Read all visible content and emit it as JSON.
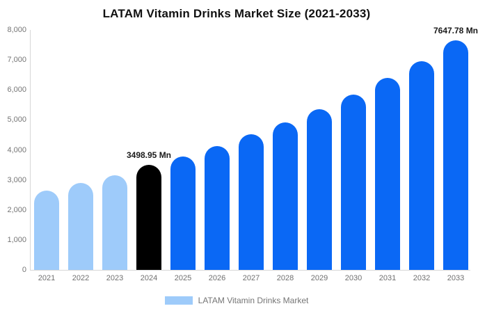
{
  "chart_data": {
    "type": "bar",
    "title": "LATAM Vitamin Drinks Market Size (2021-2033)",
    "xlabel": "",
    "ylabel": "",
    "categories": [
      "2021",
      "2022",
      "2023",
      "2024",
      "2025",
      "2026",
      "2027",
      "2028",
      "2029",
      "2030",
      "2031",
      "2032",
      "2033"
    ],
    "values": [
      2645,
      2900,
      3155,
      3498.95,
      3780,
      4130,
      4525,
      4920,
      5360,
      5845,
      6405,
      6960,
      7647.78
    ],
    "unit": "Mn",
    "ylim": [
      0,
      8000
    ],
    "ytick_interval": 1000,
    "ytick_labels": [
      "0",
      "1,000",
      "2,000",
      "3,000",
      "4,000",
      "5,000",
      "6,000",
      "7,000",
      "8,000"
    ],
    "grid": "off",
    "legend_position": "bottom",
    "annotations": [
      {
        "index": 3,
        "text": "3498.95 Mn"
      },
      {
        "index": 12,
        "text": "7647.78 Mn"
      }
    ],
    "point_colors": [
      "#9ECBFA",
      "#9ECBFA",
      "#9ECBFA",
      "#000000",
      "#0A68F5",
      "#0A68F5",
      "#0A68F5",
      "#0A68F5",
      "#0A68F5",
      "#0A68F5",
      "#0A68F5",
      "#0A68F5",
      "#0A68F5"
    ],
    "colors": {
      "historical": "#9ECBFA",
      "base_year": "#000000",
      "forecast": "#0A68F5",
      "axis_line": "#D6D6D6",
      "tick_text": "#757575",
      "annotation_text": "#1A1A1A"
    },
    "legend": {
      "items": [
        {
          "label": "LATAM Vitamin Drinks Market",
          "swatch_color": "#9ECBFA"
        }
      ]
    }
  }
}
